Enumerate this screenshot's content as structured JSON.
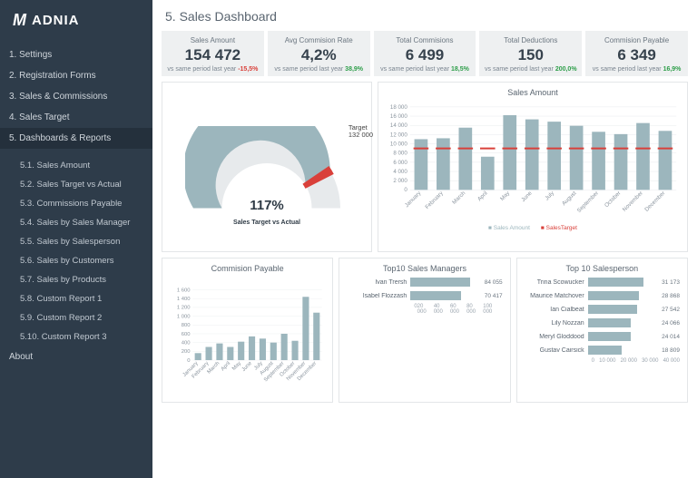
{
  "brand": {
    "mark": "M",
    "name": "ADNIA"
  },
  "page_title": "5. Sales Dashboard",
  "sidebar": {
    "items": [
      {
        "label": "1. Settings"
      },
      {
        "label": "2. Registration Forms"
      },
      {
        "label": "3. Sales & Commissions"
      },
      {
        "label": "4. Sales Target"
      },
      {
        "label": "5. Dashboards & Reports",
        "active": true
      }
    ],
    "subitems": [
      {
        "label": "5.1. Sales Amount"
      },
      {
        "label": "5.2. Sales Target vs Actual"
      },
      {
        "label": "5.3. Commissions Payable"
      },
      {
        "label": "5.4. Sales by Sales Manager"
      },
      {
        "label": "5.5. Sales by Salesperson"
      },
      {
        "label": "5.6. Sales by Customers"
      },
      {
        "label": "5.7. Sales by Products"
      },
      {
        "label": "5.8. Custom Report 1"
      },
      {
        "label": "5.9. Custom Report 2"
      },
      {
        "label": "5.10. Custom Report 3"
      }
    ],
    "footer": "About"
  },
  "kpis": [
    {
      "title": "Sales Amount",
      "value": "154 472",
      "sub_prefix": "vs same period last year",
      "delta": "-15,5%",
      "pos": false
    },
    {
      "title": "Avg Commision Rate",
      "value": "4,2%",
      "sub_prefix": "vs same period last year",
      "delta": "38,9%",
      "pos": true
    },
    {
      "title": "Total Commisions",
      "value": "6 499",
      "sub_prefix": "vs same period last year",
      "delta": "18,5%",
      "pos": true
    },
    {
      "title": "Total Deductions",
      "value": "150",
      "sub_prefix": "vs same period last year",
      "delta": "200,0%",
      "pos": true
    },
    {
      "title": "Commision Payable",
      "value": "6 349",
      "sub_prefix": "vs same period last year",
      "delta": "16,9%",
      "pos": true
    }
  ],
  "gauge": {
    "pct_label": "117%",
    "subtitle": "Sales Target vs Actual",
    "target_label": "Target",
    "target_value": "132 000",
    "arc_color": "#9cb6bd",
    "track_color": "#e7eaec",
    "needle_color": "#d9403a",
    "fill_ratio": 0.83
  },
  "sales_amount_chart": {
    "title": "Sales Amount",
    "months": [
      "January",
      "February",
      "March",
      "April",
      "May",
      "June",
      "July",
      "August",
      "September",
      "October",
      "November",
      "December"
    ],
    "values": [
      11000,
      11200,
      13500,
      7200,
      16200,
      15300,
      14800,
      13900,
      12600,
      12100,
      14500,
      12800
    ],
    "targets": [
      9000,
      9000,
      9000,
      9000,
      9000,
      9000,
      9000,
      9000,
      9000,
      9000,
      9000,
      9000
    ],
    "ymax": 18000,
    "ystep": 2000,
    "bar_color": "#9cb6bd",
    "target_color": "#d9403a",
    "grid_color": "#e6e9eb",
    "legend": [
      "Sales Amount",
      "SalesTarget"
    ]
  },
  "commission_chart": {
    "title": "Commision Payable",
    "months": [
      "January",
      "February",
      "March",
      "April",
      "May",
      "June",
      "July",
      "August",
      "September",
      "October",
      "November",
      "December"
    ],
    "values": [
      160,
      300,
      380,
      300,
      420,
      540,
      490,
      400,
      600,
      440,
      1440,
      1080
    ],
    "ymax": 1600,
    "ystep": 200,
    "bar_color": "#9cb6bd",
    "grid_color": "#eceeef"
  },
  "top_managers": {
    "title": "Top10 Sales Managers",
    "items": [
      {
        "name": "Ivan Trersh",
        "value": 84055
      },
      {
        "name": "Isabel Flozzash",
        "value": 70417
      }
    ],
    "xmax": 100000,
    "xstep": 20000,
    "bar_color": "#9cb6bd"
  },
  "top_salesperson": {
    "title": "Top 10 Salesperson",
    "items": [
      {
        "name": "Trina Scowucker",
        "value": 31173
      },
      {
        "name": "Maurice Matchover",
        "value": 28868
      },
      {
        "name": "Ian Cialbeat",
        "value": 27542
      },
      {
        "name": "Lily Nozzan",
        "value": 24066
      },
      {
        "name": "Meryl Gloddood",
        "value": 24014
      },
      {
        "name": "Gustav Cairsick",
        "value": 18809
      }
    ],
    "xmax": 40000,
    "xstep": 10000,
    "bar_color": "#9cb6bd"
  }
}
